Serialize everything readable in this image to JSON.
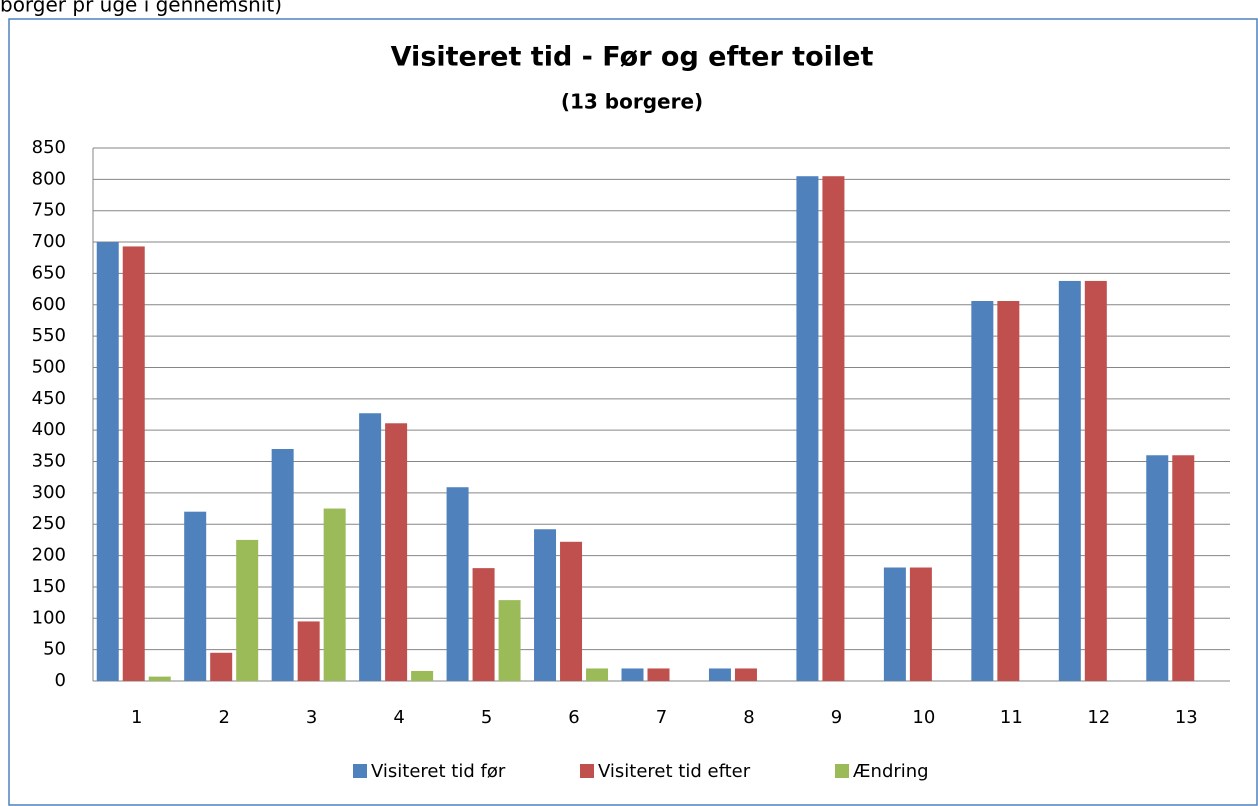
{
  "caption": "borger pr uge i gennemsnit)",
  "chart_data": {
    "type": "bar",
    "title": "Visiteret tid - Før og efter toilet",
    "subtitle": "(13 borgere)",
    "categories": [
      "1",
      "2",
      "3",
      "4",
      "5",
      "6",
      "7",
      "8",
      "9",
      "10",
      "11",
      "12",
      "13"
    ],
    "series": [
      {
        "name": "Visiteret tid før",
        "color": "#4f81bd",
        "values": [
          700,
          270,
          370,
          427,
          309,
          242,
          20,
          20,
          805,
          181,
          606,
          638,
          360
        ]
      },
      {
        "name": "Visiteret tid efter",
        "color": "#c0504d",
        "values": [
          693,
          45,
          95,
          411,
          180,
          222,
          20,
          20,
          805,
          181,
          606,
          638,
          360
        ]
      },
      {
        "name": "Ændring",
        "color": "#9bbb59",
        "values": [
          7,
          225,
          275,
          16,
          129,
          20,
          0,
          0,
          0,
          0,
          0,
          0,
          0
        ]
      }
    ],
    "ylim": [
      0,
      850
    ],
    "yticks": [
      0,
      50,
      100,
      150,
      200,
      250,
      300,
      350,
      400,
      450,
      500,
      550,
      600,
      650,
      700,
      750,
      800,
      850
    ],
    "grid": true,
    "legend": "bottom"
  }
}
